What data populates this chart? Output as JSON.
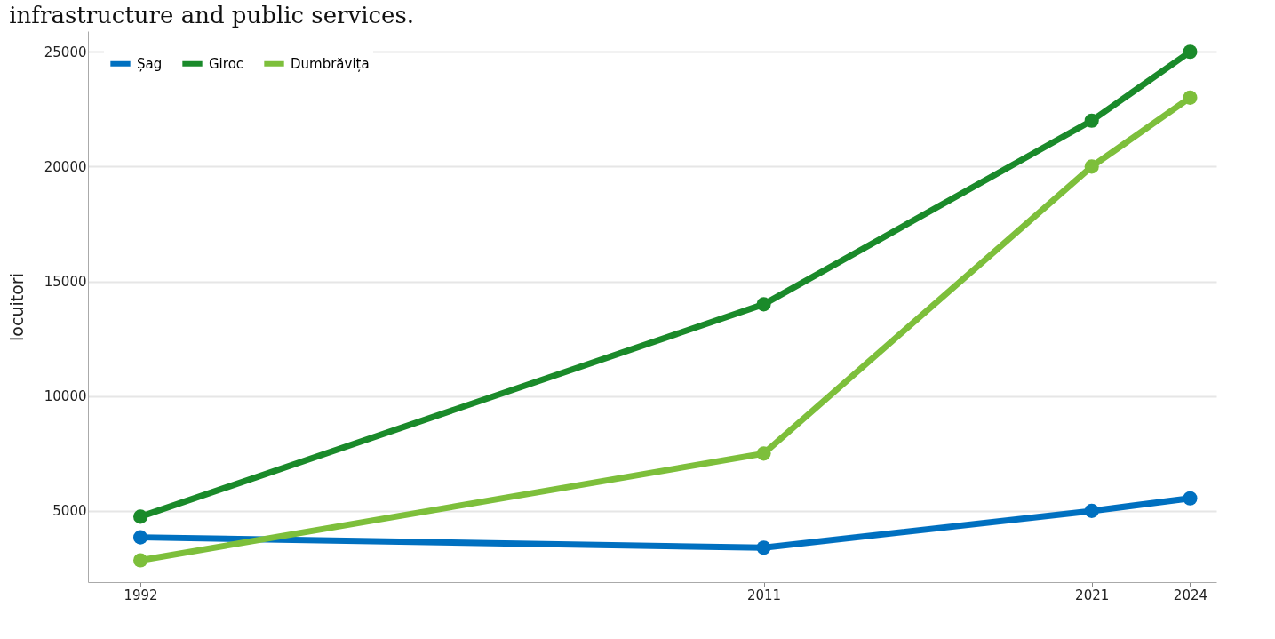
{
  "chart_data": {
    "type": "line",
    "title": "infrastructure and public services.",
    "ylabel": "locuitori",
    "x": [
      1992,
      2011,
      2021,
      2024
    ],
    "series": [
      {
        "name": "Șag",
        "color": "#0070c0",
        "values": [
          3850,
          3400,
          5000,
          5550
        ]
      },
      {
        "name": "Giroc",
        "color": "#1a8a2a",
        "values": [
          4750,
          14000,
          22000,
          25000
        ]
      },
      {
        "name": "Dumbrăvița",
        "color": "#7dbf3b",
        "values": [
          2850,
          7500,
          20000,
          23000
        ]
      }
    ],
    "xlim": [
      1990.4,
      2024.8
    ],
    "xticks": [
      1992,
      2011,
      2021,
      2024
    ],
    "ylim": [
      1900,
      25900
    ],
    "yticks": [
      5000,
      10000,
      15000,
      20000,
      25000
    ],
    "grid": "y",
    "legend": "top left",
    "marker": "circle",
    "line_style": "solid"
  }
}
